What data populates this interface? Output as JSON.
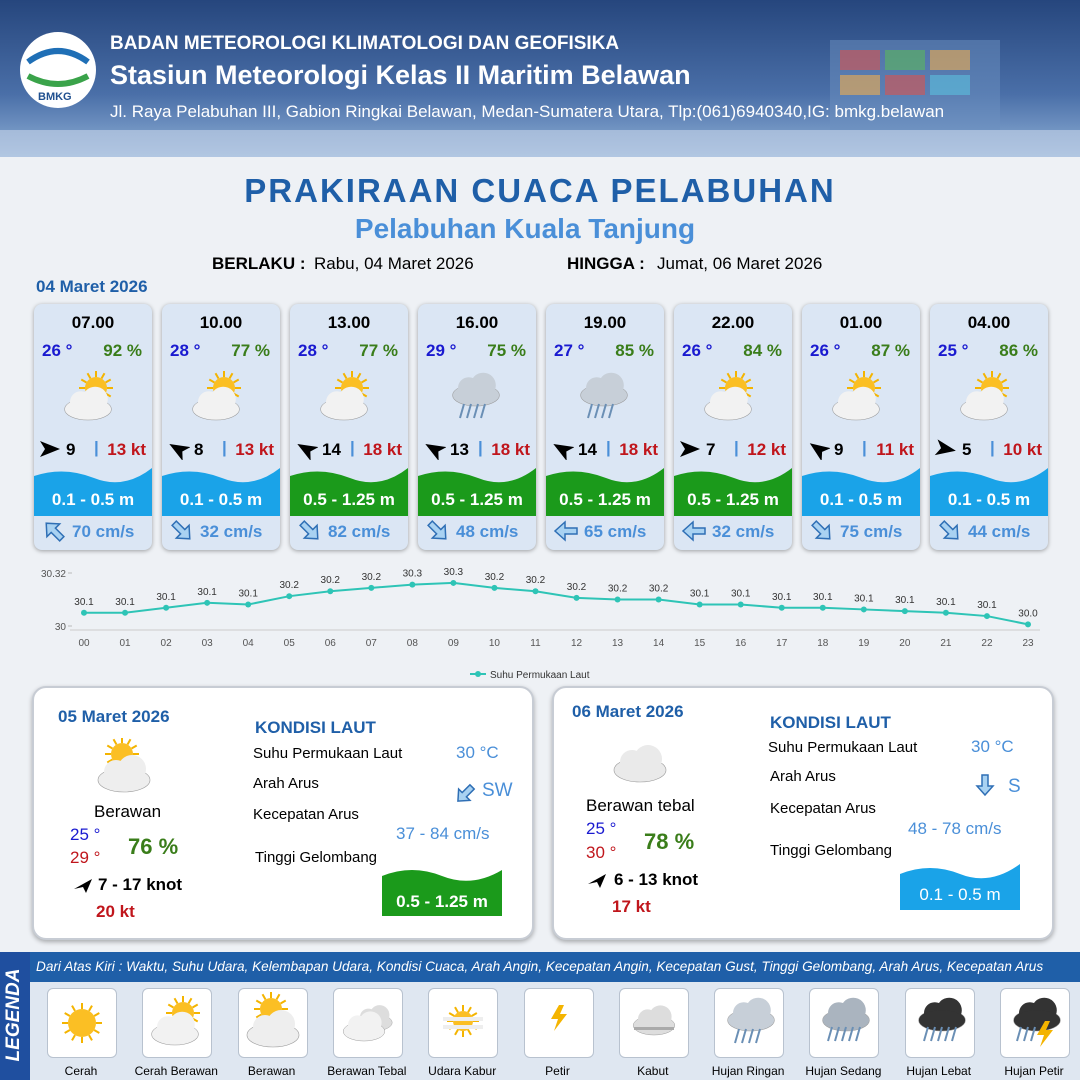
{
  "header": {
    "logo": "BMKG",
    "org": "BADAN METEOROLOGI KLIMATOLOGI DAN GEOFISIKA",
    "station": "Stasiun Meteorologi Kelas II Maritim Belawan",
    "address": "Jl. Raya Pelabuhan III, Gabion Ringkai Belawan, Medan-Sumatera Utara, Tlp:(061)6940340,IG: bmkg.belawan"
  },
  "title": "PRAKIRAAN CUACA PELABUHAN",
  "subtitle": "Pelabuhan Kuala Tanjung",
  "validity": {
    "from_label": "BERLAKU :",
    "from": "Rabu, 04 Maret 2026",
    "to_label": "HINGGA :",
    "to": "Jumat, 06 Maret 2026"
  },
  "day1": {
    "date": "04 Maret 2026",
    "cards": [
      {
        "time": "07.00",
        "temp": "26 °",
        "humidity": "92 %",
        "wind": "9",
        "gust": "13 kt",
        "wave": "0.1 - 0.5 m",
        "current": "70 cm/s"
      },
      {
        "time": "10.00",
        "temp": "28 °",
        "humidity": "77 %",
        "wind": "8",
        "gust": "13 kt",
        "wave": "0.1 - 0.5 m",
        "current": "32 cm/s"
      },
      {
        "time": "13.00",
        "temp": "28 °",
        "humidity": "77 %",
        "wind": "14",
        "gust": "18 kt",
        "wave": "0.5 - 1.25 m",
        "current": "82 cm/s"
      },
      {
        "time": "16.00",
        "temp": "29 °",
        "humidity": "75 %",
        "wind": "13",
        "gust": "18 kt",
        "wave": "0.5 - 1.25 m",
        "current": "48 cm/s"
      },
      {
        "time": "19.00",
        "temp": "27 °",
        "humidity": "85 %",
        "wind": "14",
        "gust": "18 kt",
        "wave": "0.5 - 1.25 m",
        "current": "65 cm/s"
      },
      {
        "time": "22.00",
        "temp": "26 °",
        "humidity": "84 %",
        "wind": "7",
        "gust": "12 kt",
        "wave": "0.5 - 1.25 m",
        "current": "32 cm/s"
      },
      {
        "time": "01.00",
        "temp": "26 °",
        "humidity": "87 %",
        "wind": "9",
        "gust": "11 kt",
        "wave": "0.1 - 0.5 m",
        "current": "75 cm/s"
      },
      {
        "time": "04.00",
        "temp": "25 °",
        "humidity": "86 %",
        "wind": "5",
        "gust": "10 kt",
        "wave": "0.1 - 0.5 m",
        "current": "44 cm/s"
      }
    ]
  },
  "chart_data": {
    "type": "line",
    "categories": [
      "00",
      "01",
      "02",
      "03",
      "04",
      "05",
      "06",
      "07",
      "08",
      "09",
      "10",
      "11",
      "12",
      "13",
      "14",
      "15",
      "16",
      "17",
      "18",
      "19",
      "20",
      "21",
      "22",
      "23"
    ],
    "series": [
      {
        "name": "Suhu Permukaan Laut",
        "color": "#2ec4b6",
        "values": [
          30.08,
          30.08,
          30.11,
          30.14,
          30.13,
          30.18,
          30.21,
          30.23,
          30.25,
          30.26,
          30.23,
          30.21,
          30.17,
          30.16,
          30.16,
          30.13,
          30.13,
          30.11,
          30.11,
          30.1,
          30.09,
          30.08,
          30.06,
          30.01
        ],
        "value_labels": [
          "30.1",
          "30.1",
          "30.1",
          "30.1",
          "30.1",
          "30.2",
          "30.2",
          "30.2",
          "30.3",
          "30.3",
          "30.2",
          "30.2",
          "30.2",
          "30.2",
          "30.2",
          "30.1",
          "30.1",
          "30.1",
          "30.1",
          "30.1",
          "30.1",
          "30.1",
          "30.1",
          "30.0"
        ]
      }
    ],
    "ylim": [
      30,
      30.32
    ],
    "yticks": [
      30,
      30.32
    ],
    "legend": "bottom"
  },
  "days": [
    {
      "date": "05 Maret 2026",
      "condition": "Berawan",
      "temp_min": "25 °",
      "temp_max": "29 °",
      "humidity": "76 %",
      "wind": "7  - 17 knot",
      "gust": "20 kt",
      "sea_title": "KONDISI LAUT",
      "sst_label": "Suhu Permukaan Laut",
      "sst": "30 °C",
      "dir_label": "Arah Arus",
      "dir": "SW",
      "speed_label": "Kecepatan Arus",
      "speed": "37 - 84 cm/s",
      "wave_label": "Tinggi Gelombang",
      "wave": "0.5 - 1.25 m"
    },
    {
      "date": "06 Maret 2026",
      "condition": "Berawan tebal",
      "temp_min": "25 °",
      "temp_max": "30 °",
      "humidity": "78 %",
      "wind": "6  - 13 knot",
      "gust": "17 kt",
      "sea_title": "KONDISI LAUT",
      "sst_label": "Suhu Permukaan Laut",
      "sst": "30 °C",
      "dir_label": "Arah Arus",
      "dir": "S",
      "speed_label": "Kecepatan Arus",
      "speed": "48  - 78 cm/s",
      "wave_label": "Tinggi Gelombang",
      "wave": "0.1 - 0.5 m"
    }
  ],
  "legend": {
    "title": "LEGENDA",
    "description": "Dari Atas Kiri : Waktu, Suhu Udara, Kelembapan Udara, Kondisi Cuaca, Arah Angin, Kecepatan Angin, Kecepatan Gust, Tinggi Gelombang, Arah Arus, Kecepatan Arus",
    "items": [
      "Cerah",
      "Cerah Berawan",
      "Berawan",
      "Berawan Tebal",
      "Udara Kabur",
      "Petir",
      "Kabut",
      "Hujan Ringan",
      "Hujan Sedang",
      "Hujan Lebat",
      "Hujan Petir"
    ]
  }
}
